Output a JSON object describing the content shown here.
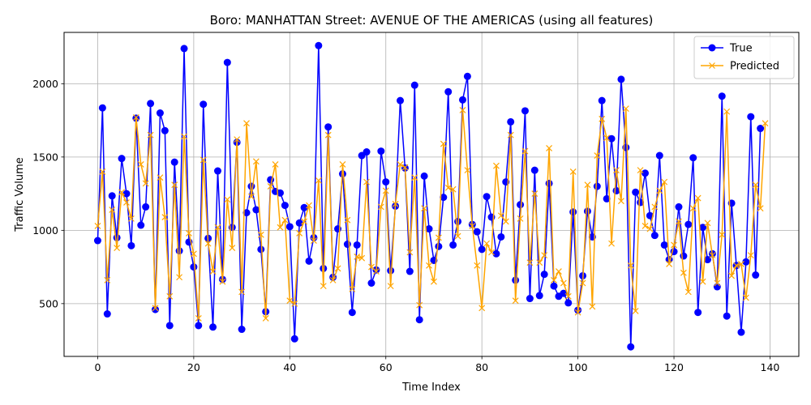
{
  "chart_data": {
    "type": "line",
    "title": "Boro: MANHATTAN Street: AVENUE OF THE AMERICAS (using all features)",
    "xlabel": "Time Index",
    "ylabel": "Traffic Volume",
    "xlim": [
      -7,
      146
    ],
    "ylim": [
      140,
      2350
    ],
    "xticks": [
      0,
      20,
      40,
      60,
      80,
      100,
      120,
      140
    ],
    "yticks": [
      500,
      1000,
      1500,
      2000
    ],
    "grid": true,
    "legend_position": "top-right",
    "series": [
      {
        "name": "True",
        "color": "#0000ff",
        "marker": "circle",
        "values": [
          930,
          1835,
          430,
          1235,
          950,
          1490,
          1250,
          895,
          1765,
          1035,
          1160,
          1865,
          460,
          1800,
          1680,
          350,
          1465,
          860,
          2240,
          920,
          750,
          350,
          1860,
          945,
          340,
          1405,
          665,
          2145,
          1020,
          1600,
          325,
          1120,
          1300,
          1140,
          870,
          445,
          1345,
          1265,
          1255,
          1170,
          1025,
          260,
          1050,
          1155,
          790,
          950,
          2260,
          740,
          1705,
          680,
          1010,
          1385,
          905,
          440,
          900,
          1510,
          1535,
          640,
          730,
          1540,
          1330,
          725,
          1165,
          1885,
          1425,
          720,
          1990,
          390,
          1370,
          1010,
          795,
          890,
          1225,
          1945,
          900,
          1060,
          1890,
          2050,
          1040,
          990,
          870,
          1230,
          1090,
          840,
          955,
          1330,
          1740,
          660,
          1175,
          1815,
          535,
          1410,
          555,
          700,
          1320,
          620,
          550,
          570,
          505,
          1125,
          455,
          690,
          1130,
          955,
          1300,
          1885,
          1215,
          1625,
          1270,
          2030,
          1565,
          205,
          1260,
          1190,
          1390,
          1100,
          965,
          1510,
          900,
          800,
          855,
          1160,
          825,
          1040,
          1495,
          440,
          1020,
          800,
          840,
          615,
          1915,
          415,
          1185,
          760,
          305,
          785,
          1775,
          695,
          1695
        ]
      },
      {
        "name": "Predicted",
        "color": "#ffa500",
        "marker": "x",
        "values": [
          1030,
          1400,
          660,
          1140,
          880,
          1260,
          1190,
          1080,
          1770,
          1450,
          1320,
          1650,
          470,
          1360,
          1090,
          550,
          1310,
          680,
          1640,
          980,
          840,
          400,
          1480,
          910,
          720,
          1020,
          650,
          1210,
          880,
          1620,
          580,
          1730,
          1230,
          1470,
          970,
          400,
          1300,
          1450,
          1020,
          1070,
          520,
          500,
          980,
          1060,
          1170,
          930,
          1340,
          620,
          1650,
          660,
          740,
          1450,
          1070,
          600,
          820,
          810,
          1330,
          750,
          720,
          1160,
          1270,
          620,
          1180,
          1450,
          1430,
          850,
          1360,
          490,
          1150,
          760,
          650,
          950,
          1590,
          1290,
          1280,
          960,
          1820,
          1410,
          1030,
          760,
          470,
          910,
          850,
          1440,
          1100,
          1060,
          1650,
          520,
          1080,
          1540,
          780,
          1250,
          780,
          830,
          1560,
          660,
          720,
          640,
          550,
          1400,
          440,
          640,
          1310,
          480,
          1510,
          1760,
          1630,
          910,
          1410,
          1200,
          1830,
          760,
          450,
          1410,
          1030,
          1010,
          1160,
          1270,
          1330,
          770,
          900,
          1060,
          710,
          580,
          1150,
          1220,
          650,
          1050,
          830,
          640,
          970,
          1810,
          690,
          760,
          770,
          540,
          830,
          1310,
          1150,
          1730
        ]
      }
    ]
  }
}
